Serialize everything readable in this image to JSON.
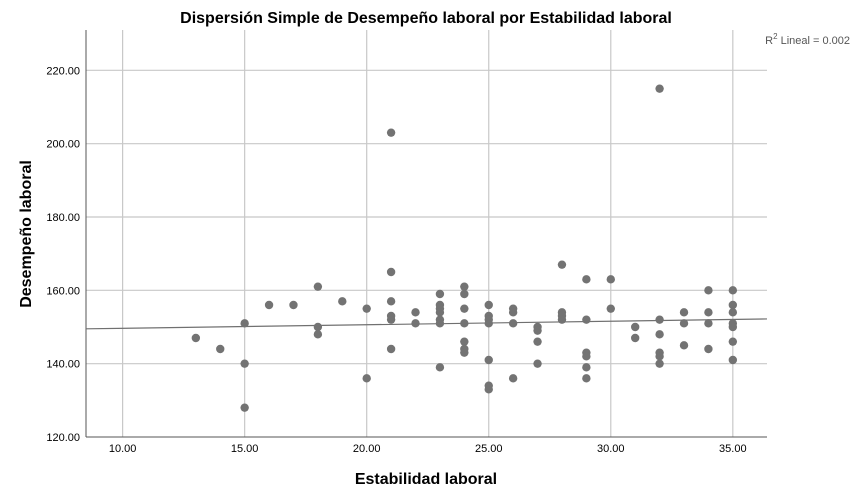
{
  "chart_data": {
    "type": "scatter",
    "title": "Dispersión Simple de Desempeño laboral por Estabilidad laboral",
    "xlabel": "Estabilidad laboral",
    "ylabel": "Desempeño laboral",
    "xlim": [
      8.5,
      36.4
    ],
    "ylim": [
      120,
      231
    ],
    "x_ticks": [
      10,
      15,
      20,
      25,
      30,
      35
    ],
    "x_tick_labels": [
      "10.00",
      "15.00",
      "20.00",
      "25.00",
      "30.00",
      "35.00"
    ],
    "y_ticks": [
      120,
      140,
      160,
      180,
      200,
      220
    ],
    "y_tick_labels": [
      "120.00",
      "140.00",
      "160.00",
      "180.00",
      "200.00",
      "220.00"
    ],
    "grid": true,
    "marker_color": "#737373",
    "fit_line_color": "#707070",
    "fit_line": {
      "type": "linear",
      "label_prefix": "R",
      "label_superscript": "2",
      "label_suffix": " Lineal = 0.002",
      "x": [
        8.5,
        36.4
      ],
      "y": [
        149.5,
        152.2
      ]
    },
    "points": [
      {
        "x": 13,
        "y": 147
      },
      {
        "x": 14,
        "y": 144
      },
      {
        "x": 15,
        "y": 151
      },
      {
        "x": 15,
        "y": 140
      },
      {
        "x": 15,
        "y": 128
      },
      {
        "x": 16,
        "y": 156
      },
      {
        "x": 17,
        "y": 156
      },
      {
        "x": 18,
        "y": 161
      },
      {
        "x": 18,
        "y": 150
      },
      {
        "x": 18,
        "y": 148
      },
      {
        "x": 19,
        "y": 157
      },
      {
        "x": 20,
        "y": 155
      },
      {
        "x": 20,
        "y": 136
      },
      {
        "x": 21,
        "y": 203
      },
      {
        "x": 21,
        "y": 165
      },
      {
        "x": 21,
        "y": 157
      },
      {
        "x": 21,
        "y": 153
      },
      {
        "x": 21,
        "y": 152
      },
      {
        "x": 21,
        "y": 144
      },
      {
        "x": 22,
        "y": 154
      },
      {
        "x": 22,
        "y": 151
      },
      {
        "x": 23,
        "y": 159
      },
      {
        "x": 23,
        "y": 156
      },
      {
        "x": 23,
        "y": 155
      },
      {
        "x": 23,
        "y": 154
      },
      {
        "x": 23,
        "y": 152
      },
      {
        "x": 23,
        "y": 151
      },
      {
        "x": 23,
        "y": 139
      },
      {
        "x": 24,
        "y": 161
      },
      {
        "x": 24,
        "y": 159
      },
      {
        "x": 24,
        "y": 155
      },
      {
        "x": 24,
        "y": 151
      },
      {
        "x": 24,
        "y": 146
      },
      {
        "x": 24,
        "y": 144
      },
      {
        "x": 24,
        "y": 143
      },
      {
        "x": 25,
        "y": 156
      },
      {
        "x": 25,
        "y": 153
      },
      {
        "x": 25,
        "y": 152
      },
      {
        "x": 25,
        "y": 151
      },
      {
        "x": 25,
        "y": 141
      },
      {
        "x": 25,
        "y": 134
      },
      {
        "x": 25,
        "y": 133
      },
      {
        "x": 26,
        "y": 155
      },
      {
        "x": 26,
        "y": 154
      },
      {
        "x": 26,
        "y": 151
      },
      {
        "x": 26,
        "y": 136
      },
      {
        "x": 27,
        "y": 150
      },
      {
        "x": 27,
        "y": 149
      },
      {
        "x": 27,
        "y": 146
      },
      {
        "x": 27,
        "y": 140
      },
      {
        "x": 28,
        "y": 167
      },
      {
        "x": 28,
        "y": 154
      },
      {
        "x": 28,
        "y": 153
      },
      {
        "x": 28,
        "y": 152
      },
      {
        "x": 29,
        "y": 163
      },
      {
        "x": 29,
        "y": 152
      },
      {
        "x": 29,
        "y": 143
      },
      {
        "x": 29,
        "y": 142
      },
      {
        "x": 29,
        "y": 139
      },
      {
        "x": 29,
        "y": 136
      },
      {
        "x": 30,
        "y": 163
      },
      {
        "x": 30,
        "y": 155
      },
      {
        "x": 31,
        "y": 150
      },
      {
        "x": 31,
        "y": 147
      },
      {
        "x": 32,
        "y": 215
      },
      {
        "x": 32,
        "y": 152
      },
      {
        "x": 32,
        "y": 148
      },
      {
        "x": 32,
        "y": 143
      },
      {
        "x": 32,
        "y": 142
      },
      {
        "x": 32,
        "y": 140
      },
      {
        "x": 33,
        "y": 154
      },
      {
        "x": 33,
        "y": 151
      },
      {
        "x": 33,
        "y": 145
      },
      {
        "x": 34,
        "y": 160
      },
      {
        "x": 34,
        "y": 154
      },
      {
        "x": 34,
        "y": 151
      },
      {
        "x": 34,
        "y": 144
      },
      {
        "x": 35,
        "y": 160
      },
      {
        "x": 35,
        "y": 156
      },
      {
        "x": 35,
        "y": 154
      },
      {
        "x": 35,
        "y": 151
      },
      {
        "x": 35,
        "y": 150
      },
      {
        "x": 35,
        "y": 146
      },
      {
        "x": 35,
        "y": 141
      }
    ]
  }
}
